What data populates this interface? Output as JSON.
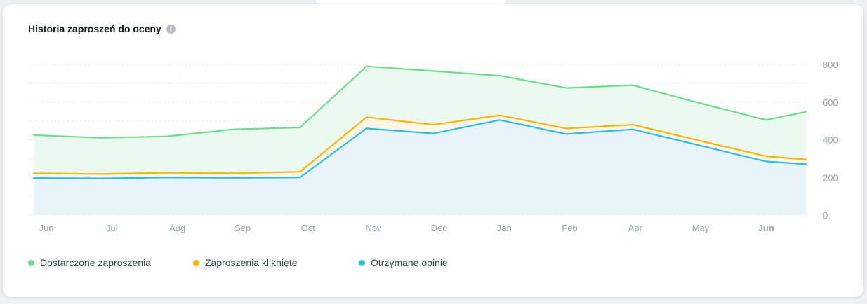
{
  "card": {
    "title": "Historia zaproszeń do oceny",
    "info_icon": "info-icon"
  },
  "chart_data": {
    "type": "area",
    "title": "Historia zaproszeń do oceny",
    "categories": [
      "Jun",
      "Jul",
      "Aug",
      "Sep",
      "Oct",
      "Nov",
      "Dec",
      "Jan",
      "Feb",
      "Apr",
      "May",
      "Jun"
    ],
    "bold_categories": [
      11
    ],
    "ylim": [
      0,
      800
    ],
    "yticks": [
      0,
      200,
      400,
      600,
      800
    ],
    "grid": true,
    "y_axis_position": "right",
    "legend_position": "bottom-left",
    "x_values": [
      0,
      1,
      2,
      3,
      4,
      5,
      6,
      7,
      8,
      9,
      10,
      11,
      11.6
    ],
    "series": [
      {
        "name": "Dostarczone zaproszenia",
        "color": "#6fdc8c",
        "fill": "#e9f9ee",
        "values": [
          425,
          410,
          418,
          455,
          465,
          790,
          765,
          740,
          675,
          690,
          595,
          505,
          548
        ]
      },
      {
        "name": "Zaproszenia kliknięte",
        "color": "#ffb20f",
        "fill": "#fff6e6",
        "values": [
          222,
          218,
          225,
          222,
          230,
          520,
          480,
          530,
          460,
          480,
          395,
          312,
          295
        ]
      },
      {
        "name": "Otrzymane opinie",
        "color": "#2bbde4",
        "fill": "#e6f3fb",
        "values": [
          197,
          195,
          200,
          198,
          200,
          460,
          433,
          505,
          430,
          455,
          370,
          285,
          270
        ]
      }
    ]
  },
  "legend": [
    {
      "label": "Dostarczone zaproszenia",
      "color": "#6fdc8c"
    },
    {
      "label": "Zaproszenia kliknięte",
      "color": "#ffb20f"
    },
    {
      "label": "Otrzymane opinie",
      "color": "#2bbde4"
    }
  ]
}
